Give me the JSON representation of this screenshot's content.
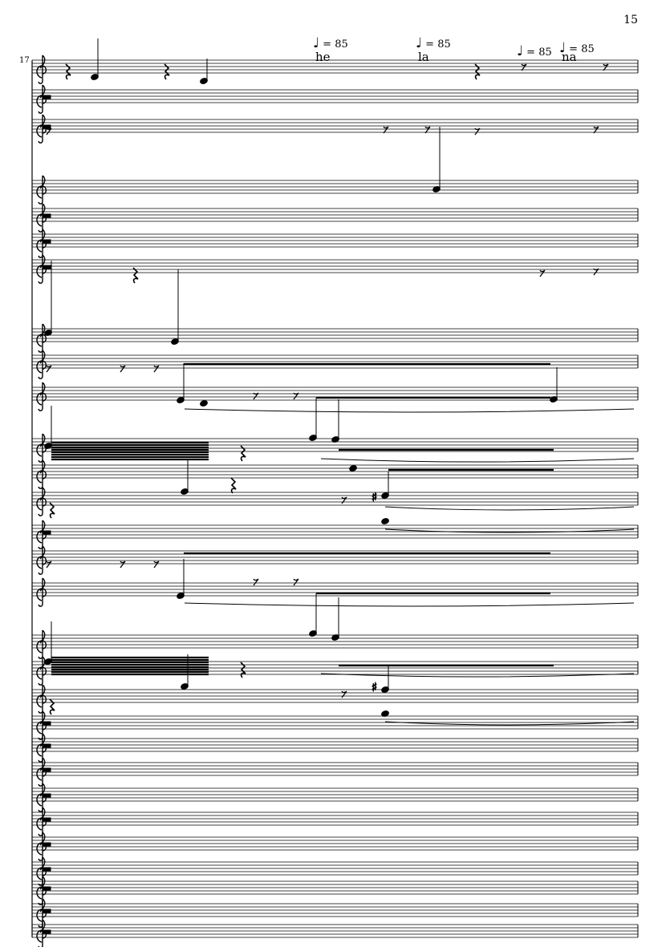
{
  "page": {
    "number": "15",
    "measure_number": "17"
  },
  "tempo_marks": [
    {
      "note": "♩",
      "text": "= 85"
    },
    {
      "note": "♩",
      "text": "= 85"
    },
    {
      "note": "♩",
      "text": "= 85"
    },
    {
      "note": "♩",
      "text": "= 85"
    }
  ],
  "lyrics": [
    "he",
    "la",
    "na"
  ],
  "accidental": "♯",
  "staff_count": 31
}
